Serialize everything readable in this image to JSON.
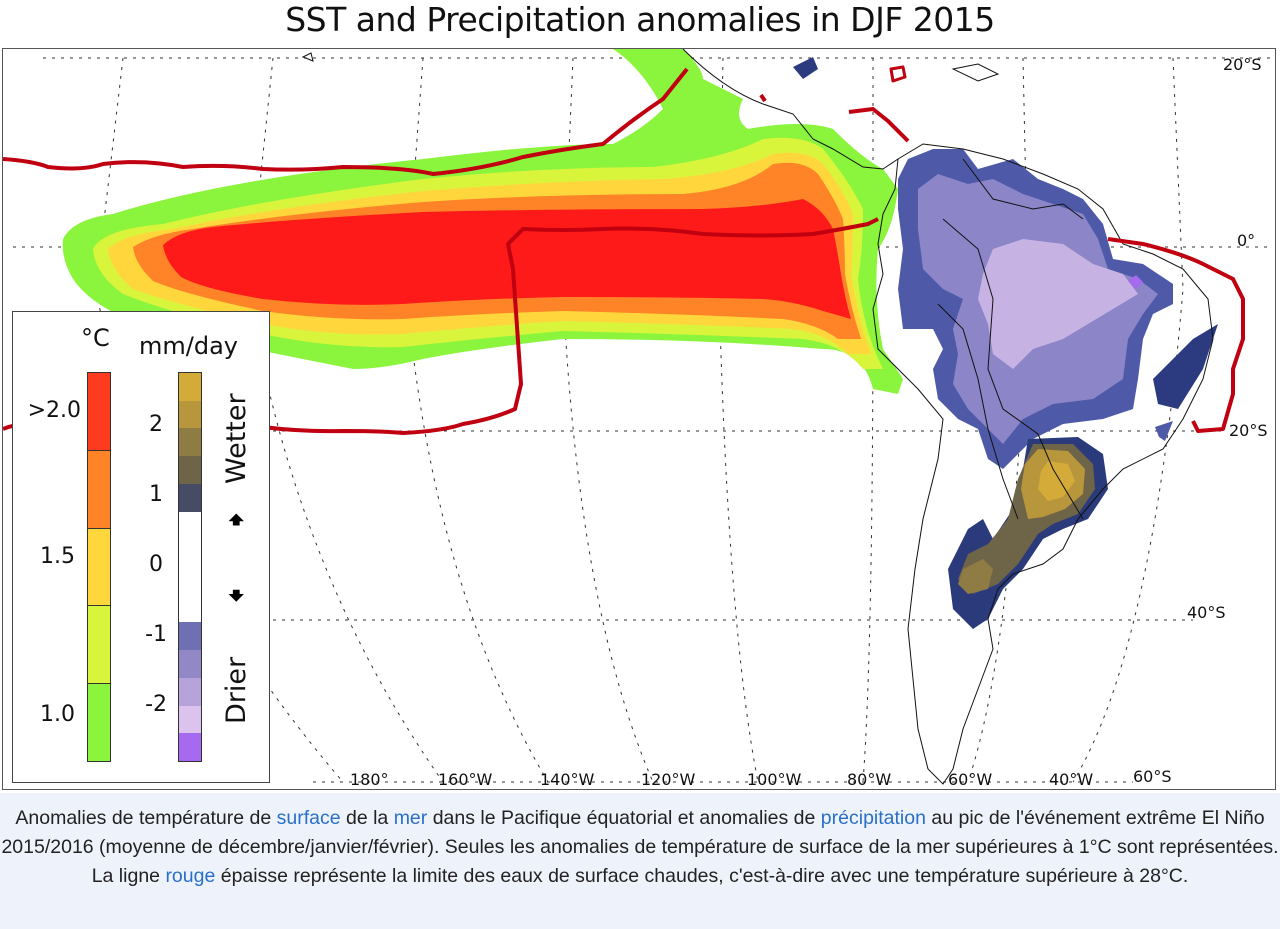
{
  "title": "SST and Precipitation anomalies in DJF 2015",
  "map": {
    "lat_labels": [
      "20°S",
      "0°",
      "20°S",
      "40°S",
      "60°S"
    ],
    "lon_labels": [
      "180°",
      "160°W",
      "140°W",
      "120°W",
      "100°W",
      "80°W",
      "60°W",
      "40°W"
    ],
    "warm_pool_line_color": "#c00010",
    "warm_pool_threshold_c": 28
  },
  "legend": {
    "sst": {
      "unit": "°C",
      "ticks": [
        ">2.0",
        "1.5",
        "1.0"
      ],
      "levels": [
        {
          "range": "> 2.0",
          "color": "#ff3b1f"
        },
        {
          "range": "1.75 – 2.0",
          "color": "#ff8428"
        },
        {
          "range": "1.5 – 1.75",
          "color": "#ffd73c"
        },
        {
          "range": "1.25 – 1.5",
          "color": "#d8f53c"
        },
        {
          "range": "1.0 – 1.25",
          "color": "#8af53c"
        }
      ]
    },
    "precip": {
      "unit": "mm/day",
      "ticks": [
        "2",
        "1",
        "0",
        "-1",
        "-2"
      ],
      "wetter_label": "Wetter",
      "drier_label": "Drier",
      "levels": [
        {
          "value": "> 2.5",
          "color": "#d4aa38"
        },
        {
          "value": "2.0 – 2.5",
          "color": "#b8963c"
        },
        {
          "value": "1.5 – 2.0",
          "color": "#8f7c44"
        },
        {
          "value": "1.25 – 1.5",
          "color": "#6e6448"
        },
        {
          "value": "1.0 – 1.25",
          "color": "#474c66"
        },
        {
          "value": "-1.0 – 1.0",
          "color": "#ffffff"
        },
        {
          "value": "-1.0 – -1.5",
          "color": "#6f70b4"
        },
        {
          "value": "-1.5 – -2.0",
          "color": "#9288c6"
        },
        {
          "value": "-2.0 – -2.5",
          "color": "#b6a3da"
        },
        {
          "value": "-2.5 – -3.0",
          "color": "#dcc3ee"
        },
        {
          "value": "< -3.0",
          "color": "#a56af0"
        }
      ]
    }
  },
  "caption": {
    "parts": [
      {
        "text": "Anomalies de température de ",
        "link": false
      },
      {
        "text": "surface",
        "link": true
      },
      {
        "text": " de la ",
        "link": false
      },
      {
        "text": "mer",
        "link": true
      },
      {
        "text": " dans le Pacifique équatorial et anomalies de ",
        "link": false
      },
      {
        "text": "précipitation",
        "link": true
      },
      {
        "text": " au pic de l'événement extrême El Niño 2015/2016 (moyenne de décembre/janvier/février). Seules les anomalies de température de surface de la mer supérieures à 1°C sont représentées. La ligne ",
        "link": false
      },
      {
        "text": "rouge",
        "link": true
      },
      {
        "text": " épaisse représente la limite des eaux de surface chaudes, c'est-à-dire avec une température supérieure à 28°C.",
        "link": false
      }
    ]
  }
}
